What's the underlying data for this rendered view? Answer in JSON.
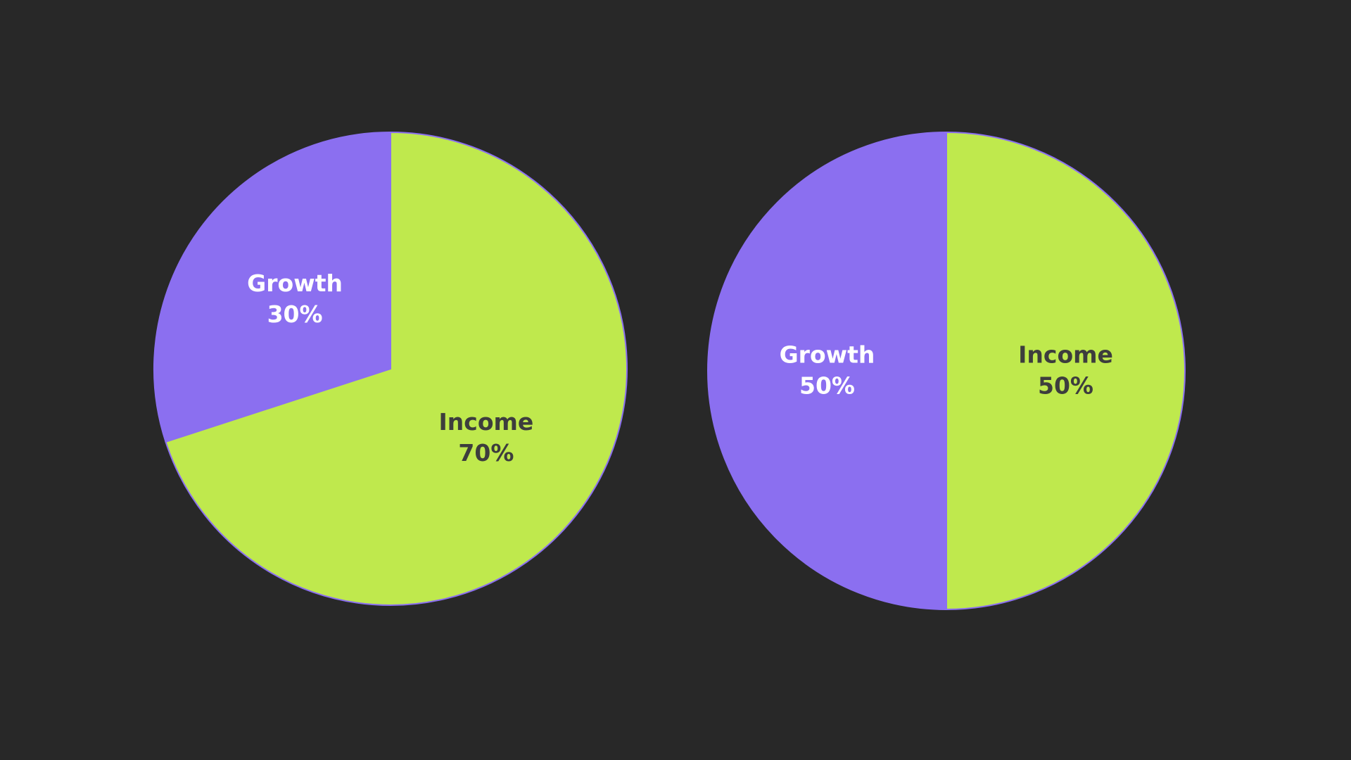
{
  "chart_data": [
    {
      "type": "pie",
      "categories": [
        "Income",
        "Growth"
      ],
      "values": [
        70,
        30
      ],
      "value_labels": [
        "70%",
        "30%"
      ],
      "colors": [
        "#bfe94d",
        "#8b6ff0"
      ]
    },
    {
      "type": "pie",
      "categories": [
        "Income",
        "Growth"
      ],
      "values": [
        50,
        50
      ],
      "value_labels": [
        "50%",
        "50%"
      ],
      "colors": [
        "#bfe94d",
        "#8b6ff0"
      ]
    }
  ]
}
